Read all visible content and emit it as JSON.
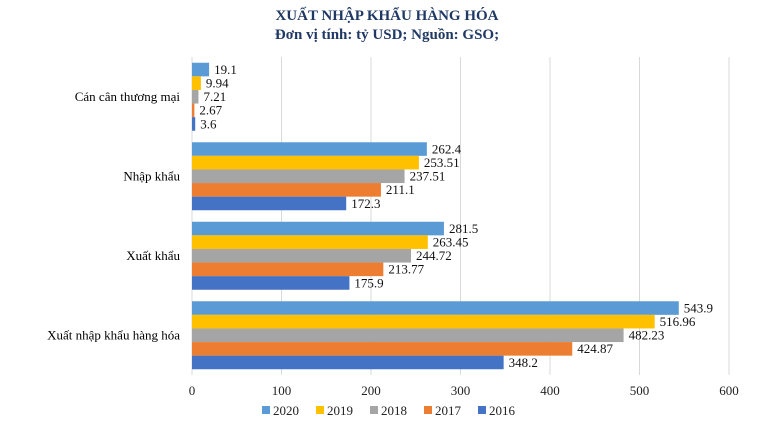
{
  "chart_data": {
    "type": "bar",
    "orientation": "horizontal",
    "title": "XUẤT NHẬP KHẨU HÀNG HÓA",
    "subtitle": "Đơn vị tính: tỷ USD; Nguồn: GSO;",
    "categories": [
      "Cán cân thương mại",
      "Nhập khẩu",
      "Xuất khẩu",
      "Xuất nhập khẩu hàng hóa"
    ],
    "series": [
      {
        "name": "2020",
        "color": "#5B9BD5",
        "values": [
          19.1,
          262.4,
          281.5,
          543.9
        ]
      },
      {
        "name": "2019",
        "color": "#FFC000",
        "values": [
          9.94,
          253.51,
          263.45,
          516.96
        ]
      },
      {
        "name": "2018",
        "color": "#A5A5A5",
        "values": [
          7.21,
          237.51,
          244.72,
          482.23
        ]
      },
      {
        "name": "2017",
        "color": "#ED7D31",
        "values": [
          2.67,
          211.1,
          213.77,
          424.87
        ]
      },
      {
        "name": "2016",
        "color": "#4472C4",
        "values": [
          3.6,
          172.3,
          175.9,
          348.2
        ]
      }
    ],
    "xlim": [
      0,
      600
    ],
    "xticks": [
      "0",
      "100",
      "200",
      "300",
      "400",
      "500",
      "600"
    ],
    "grid": true,
    "legend": "bottom"
  }
}
